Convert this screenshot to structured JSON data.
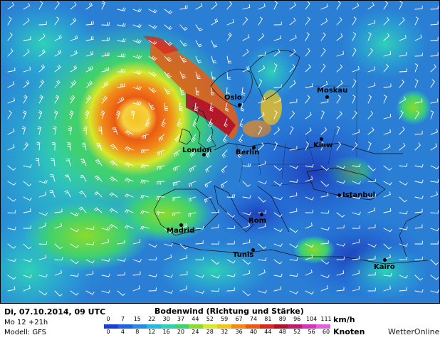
{
  "map": {
    "cities": [
      {
        "name": "Moskau"
      },
      {
        "name": "Oslo"
      },
      {
        "name": "London"
      },
      {
        "name": "Berlin"
      },
      {
        "name": "Kiew"
      },
      {
        "name": "Istanbul"
      },
      {
        "name": "Madrid"
      },
      {
        "name": "Rom"
      },
      {
        "name": "Tunis"
      },
      {
        "name": "Kairo"
      }
    ]
  },
  "legend": {
    "date": "Di, 07.10.2014, 09 UTC",
    "run": "Mo 12 +21h",
    "model": "Modell: GFS",
    "title": "Bodenwind (Richtung und Stärke)",
    "kmh_unit": "km/h",
    "knots_unit": "Knoten",
    "brand": "WetterOnline",
    "kmh_values": [
      "0",
      "7",
      "15",
      "22",
      "30",
      "37",
      "44",
      "52",
      "59",
      "67",
      "74",
      "81",
      "89",
      "96",
      "104",
      "111"
    ],
    "knots_values": [
      "0",
      "4",
      "8",
      "12",
      "16",
      "20",
      "24",
      "28",
      "32",
      "36",
      "40",
      "44",
      "48",
      "52",
      "56",
      "60"
    ],
    "colors": [
      "#1a3fd6",
      "#1f63e0",
      "#2a8ae6",
      "#27b6e0",
      "#2fd1b4",
      "#3fd070",
      "#8adc2c",
      "#d8e82a",
      "#f2c21e",
      "#f28a18",
      "#ea5a14",
      "#d82a20",
      "#b0102a",
      "#c01a6c",
      "#d830b8",
      "#e060e0"
    ]
  }
}
